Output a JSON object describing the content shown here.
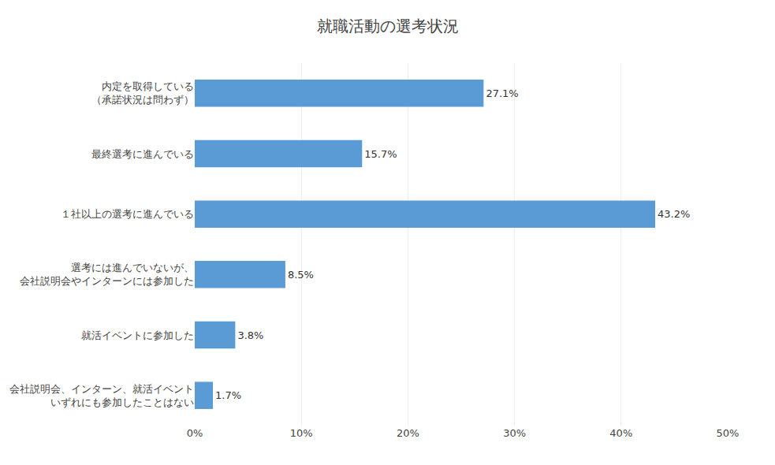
{
  "chart_data": {
    "type": "bar",
    "orientation": "horizontal",
    "title": "就職活動の選考状況",
    "categories": [
      "会社説明会、インターン、就活イベント\nいずれにも参加したことはない",
      "就活イベントに参加した",
      "選考には進んでいないが、\n会社説明会やインターンには参加した",
      "１社以上の選考に進んでいる",
      "最終選考に進んでいる",
      "内定を取得している\n（承諾状況は問わず）"
    ],
    "values": [
      1.7,
      3.8,
      8.5,
      43.2,
      15.7,
      27.1
    ],
    "value_labels": [
      "1.7%",
      "3.8%",
      "8.5%",
      "43.2%",
      "15.7%",
      "27.1%"
    ],
    "data_labels": true,
    "color": "#5b9bd5",
    "xlim": [
      0,
      50
    ],
    "xticks": [
      {
        "value": 0,
        "label": "0%"
      },
      {
        "value": 10,
        "label": "10%"
      },
      {
        "value": 20,
        "label": "20%"
      },
      {
        "value": 30,
        "label": "30%"
      },
      {
        "value": 40,
        "label": "40%"
      },
      {
        "value": 50,
        "label": "50%"
      }
    ],
    "grid": true
  }
}
